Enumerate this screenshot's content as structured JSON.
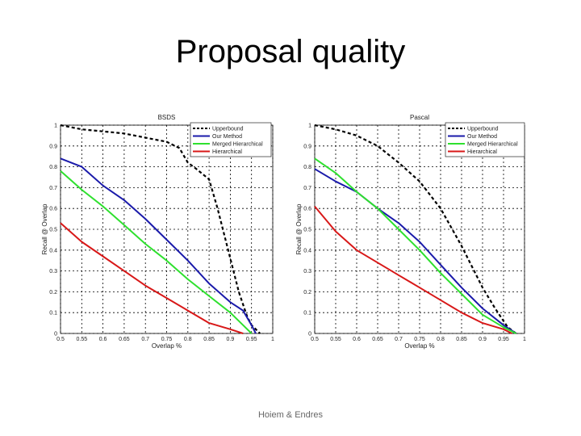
{
  "slide": {
    "title": "Proposal quality",
    "footer": "Hoiem & Endres"
  },
  "chart_data": [
    {
      "type": "line",
      "title": "BSDS",
      "xlabel": "Overlap %",
      "ylabel": "Recall @ Overlap",
      "xlim": [
        0.5,
        1.0
      ],
      "ylim": [
        0,
        1
      ],
      "xticks": [
        "0.5",
        "0.55",
        "0.6",
        "0.65",
        "0.7",
        "0.75",
        "0.8",
        "0.85",
        "0.9",
        "0.95",
        "1"
      ],
      "yticks": [
        "0",
        "0.1",
        "0.2",
        "0.3",
        "0.4",
        "0.5",
        "0.6",
        "0.7",
        "0.8",
        "0.9",
        "1"
      ],
      "grid": true,
      "legend_position": "top-right",
      "series": [
        {
          "name": "Upperbound",
          "color": "#000000",
          "dash": true,
          "x": [
            0.5,
            0.55,
            0.6,
            0.65,
            0.7,
            0.75,
            0.78,
            0.8,
            0.82,
            0.85,
            0.87,
            0.9,
            0.92,
            0.94,
            0.95,
            0.96,
            0.97
          ],
          "y": [
            1.0,
            0.98,
            0.97,
            0.96,
            0.94,
            0.92,
            0.89,
            0.82,
            0.79,
            0.74,
            0.6,
            0.36,
            0.2,
            0.08,
            0.04,
            0.02,
            0.0
          ]
        },
        {
          "name": "Our Method",
          "color": "#1a1aaa",
          "dash": false,
          "x": [
            0.5,
            0.55,
            0.6,
            0.65,
            0.7,
            0.75,
            0.8,
            0.85,
            0.9,
            0.93,
            0.95,
            0.96
          ],
          "y": [
            0.84,
            0.8,
            0.71,
            0.64,
            0.55,
            0.45,
            0.35,
            0.24,
            0.15,
            0.11,
            0.04,
            0.0
          ]
        },
        {
          "name": "Merged Hierarchical",
          "color": "#2ee02e",
          "dash": false,
          "x": [
            0.5,
            0.55,
            0.6,
            0.65,
            0.7,
            0.75,
            0.8,
            0.85,
            0.9,
            0.93,
            0.95
          ],
          "y": [
            0.78,
            0.69,
            0.61,
            0.52,
            0.43,
            0.35,
            0.26,
            0.18,
            0.1,
            0.04,
            0.0
          ]
        },
        {
          "name": "Hierarchical",
          "color": "#d81818",
          "dash": false,
          "x": [
            0.5,
            0.55,
            0.6,
            0.65,
            0.7,
            0.75,
            0.8,
            0.85,
            0.9,
            0.93
          ],
          "y": [
            0.53,
            0.44,
            0.37,
            0.3,
            0.23,
            0.17,
            0.11,
            0.05,
            0.02,
            0.0
          ]
        }
      ]
    },
    {
      "type": "line",
      "title": "Pascal",
      "xlabel": "Overlap %",
      "ylabel": "Recall @ Overlap",
      "xlim": [
        0.5,
        1.0
      ],
      "ylim": [
        0,
        1
      ],
      "xticks": [
        "0.5",
        "0.55",
        "0.6",
        "0.65",
        "0.7",
        "0.75",
        "0.8",
        "0.85",
        "0.9",
        "0.95",
        "1"
      ],
      "yticks": [
        "0",
        "0.1",
        "0.2",
        "0.3",
        "0.4",
        "0.5",
        "0.6",
        "0.7",
        "0.8",
        "0.9",
        "1"
      ],
      "grid": true,
      "legend_position": "top-right",
      "series": [
        {
          "name": "Upperbound",
          "color": "#000000",
          "dash": true,
          "x": [
            0.5,
            0.55,
            0.6,
            0.65,
            0.7,
            0.75,
            0.8,
            0.85,
            0.9,
            0.93,
            0.96,
            0.98
          ],
          "y": [
            1.0,
            0.98,
            0.95,
            0.9,
            0.82,
            0.73,
            0.6,
            0.42,
            0.22,
            0.12,
            0.03,
            0.0
          ]
        },
        {
          "name": "Our Method",
          "color": "#1a1aaa",
          "dash": false,
          "x": [
            0.5,
            0.55,
            0.6,
            0.65,
            0.7,
            0.75,
            0.8,
            0.85,
            0.9,
            0.95,
            0.98
          ],
          "y": [
            0.79,
            0.73,
            0.68,
            0.6,
            0.53,
            0.44,
            0.33,
            0.22,
            0.12,
            0.04,
            0.0
          ]
        },
        {
          "name": "Merged Hierarchical",
          "color": "#2ee02e",
          "dash": false,
          "x": [
            0.5,
            0.55,
            0.6,
            0.65,
            0.7,
            0.75,
            0.8,
            0.85,
            0.9,
            0.95,
            0.98
          ],
          "y": [
            0.84,
            0.77,
            0.68,
            0.6,
            0.5,
            0.4,
            0.29,
            0.19,
            0.09,
            0.03,
            0.0
          ]
        },
        {
          "name": "Hierarchical",
          "color": "#d81818",
          "dash": false,
          "x": [
            0.5,
            0.55,
            0.6,
            0.65,
            0.7,
            0.75,
            0.8,
            0.85,
            0.9,
            0.95,
            0.97
          ],
          "y": [
            0.61,
            0.49,
            0.4,
            0.34,
            0.28,
            0.22,
            0.16,
            0.1,
            0.05,
            0.02,
            0.0
          ]
        }
      ]
    }
  ]
}
